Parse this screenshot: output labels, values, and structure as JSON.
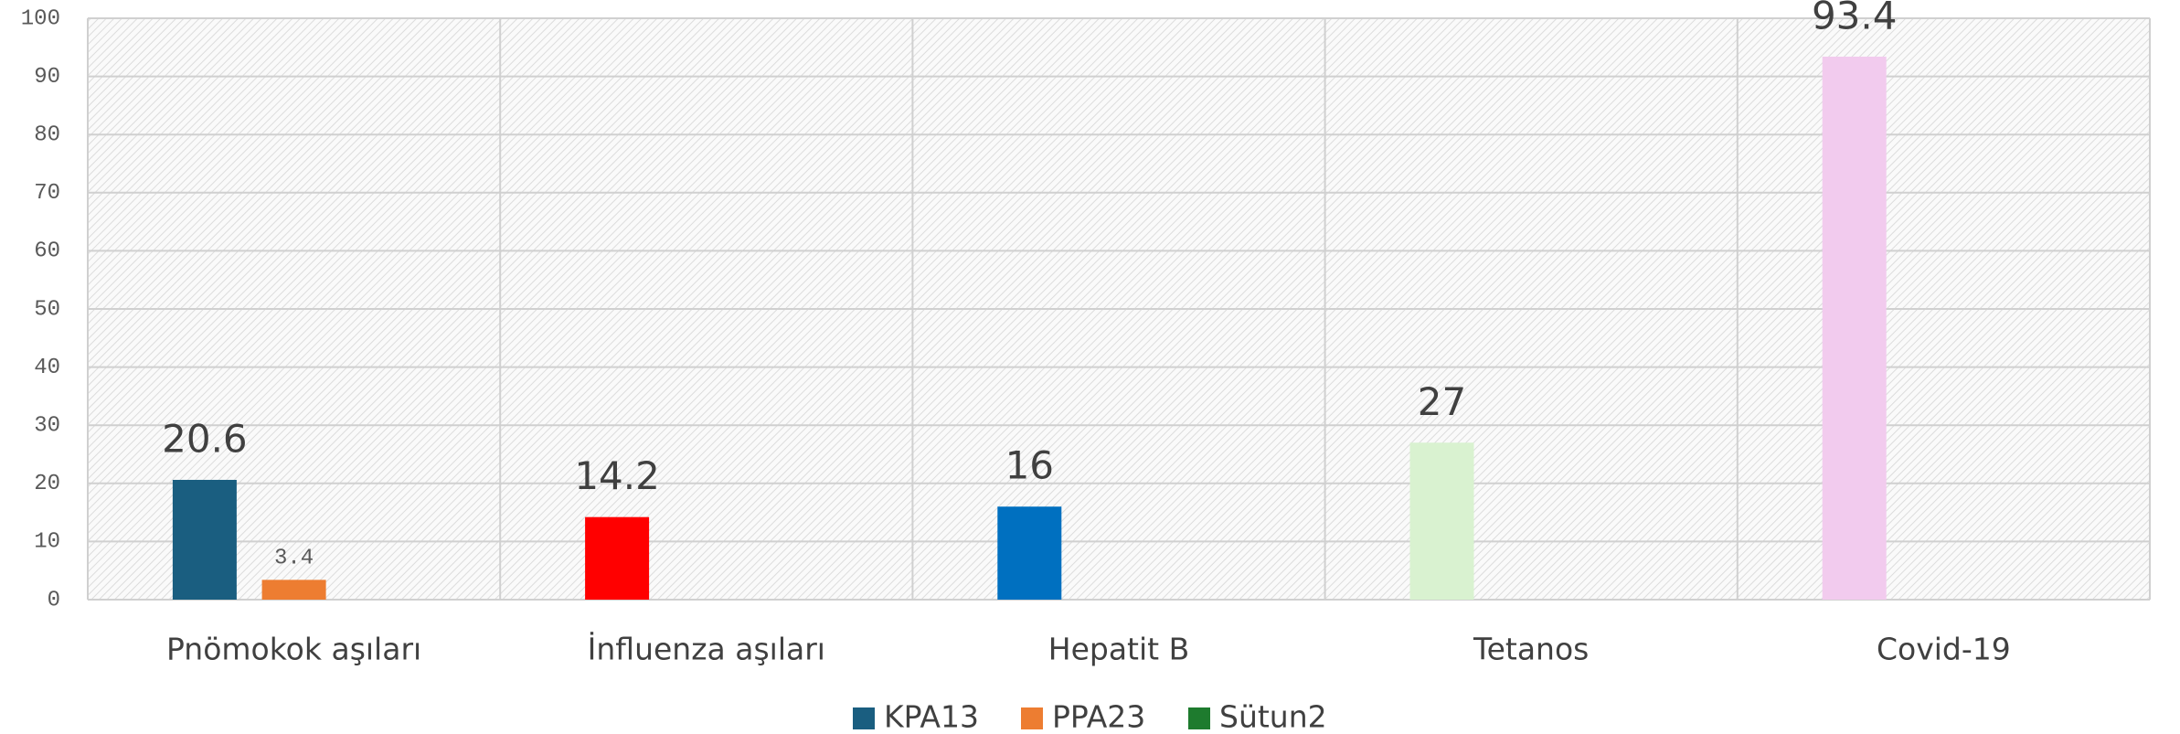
{
  "chart_data": {
    "type": "bar",
    "categories": [
      "Pnömokok aşıları",
      "İnfluenza aşıları",
      "Hepatit B",
      "Tetanos",
      "Covid-19"
    ],
    "series": [
      {
        "name": "KPA13",
        "color": "#1a5e80",
        "colors": [
          "#1a5e80",
          "#ff0000",
          "#0070c0",
          "#d9f2d0",
          "#f2cbee"
        ],
        "values": [
          20.6,
          14.2,
          16,
          27,
          93.4
        ]
      },
      {
        "name": "PPA23",
        "color": "#ed7d31",
        "values": [
          3.4,
          null,
          null,
          null,
          null
        ]
      },
      {
        "name": "Sütun2",
        "color": "#1e7b2e",
        "values": [
          null,
          null,
          null,
          null,
          null
        ]
      }
    ],
    "ylim": [
      0,
      100
    ],
    "yticks": [
      0,
      10,
      20,
      30,
      40,
      50,
      60,
      70,
      80,
      90,
      100
    ],
    "grid": true,
    "legend": "bottom"
  }
}
